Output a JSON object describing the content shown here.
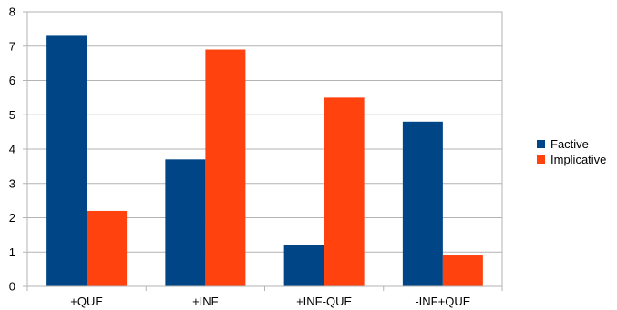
{
  "chart_data": {
    "type": "bar",
    "title": "",
    "xlabel": "",
    "ylabel": "",
    "categories": [
      "+QUE",
      "+INF",
      "+INF-QUE",
      "-INF+QUE"
    ],
    "series": [
      {
        "name": "Factive",
        "values": [
          7.3,
          3.7,
          1.2,
          4.8
        ],
        "color": "#004586"
      },
      {
        "name": "Implicative",
        "values": [
          2.2,
          6.9,
          5.5,
          0.9
        ],
        "color": "#ff420e"
      }
    ],
    "ylim": [
      0,
      8
    ],
    "yticks": [
      "0",
      "1",
      "2",
      "3",
      "4",
      "5",
      "6",
      "7",
      "8"
    ],
    "grid": true,
    "legend_position": "right"
  }
}
